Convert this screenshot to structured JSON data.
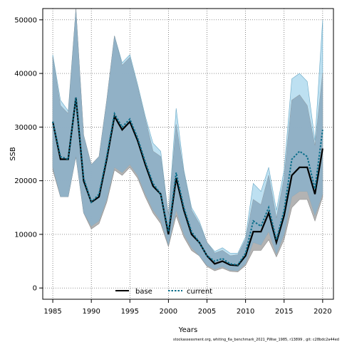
{
  "chart_data": {
    "type": "area",
    "xlabel": "Years",
    "ylabel": "SSB",
    "xlim": [
      1983.7,
      2021.4
    ],
    "ylim": [
      -2100,
      52100
    ],
    "x_ticks": [
      1985,
      1990,
      1995,
      2000,
      2005,
      2010,
      2015,
      2020
    ],
    "y_ticks": [
      0,
      10000,
      20000,
      30000,
      40000,
      50000
    ],
    "grid": "dotted",
    "legend_placement": "bottom-center",
    "footnote": "stockassessment.org, whiting_6a_benchmark_2021_PWse_1985, r13899 , git: c28bdc2a44ed",
    "colors": {
      "base_band": "#a0a0a0",
      "current_band": "#87c6e6",
      "overlap_band": "#8fb1c7",
      "base_line": "#000000",
      "current_line": "#0b6e8a"
    },
    "x": [
      1985,
      1986,
      1987,
      1988,
      1989,
      1990,
      1991,
      1992,
      1993,
      1994,
      1995,
      1996,
      1997,
      1998,
      1999,
      2000,
      2001,
      2002,
      2003,
      2004,
      2005,
      2006,
      2007,
      2008,
      2009,
      2010,
      2011,
      2012,
      2013,
      2014,
      2015,
      2016,
      2017,
      2018,
      2019,
      2020
    ],
    "series": [
      {
        "name": "base",
        "estimate": [
          31000,
          24000,
          24000,
          35500,
          20000,
          16000,
          17000,
          24000,
          32000,
          29500,
          31000,
          27500,
          23000,
          19000,
          17500,
          10000,
          20500,
          14500,
          10000,
          8500,
          6000,
          4500,
          5000,
          4300,
          4200,
          6000,
          10500,
          10500,
          14000,
          8500,
          13500,
          21000,
          22500,
          22500,
          17500,
          26000
        ],
        "lower": [
          22000,
          17000,
          17000,
          24500,
          14000,
          11000,
          12000,
          16000,
          22000,
          21000,
          22500,
          20500,
          17000,
          14000,
          12000,
          7700,
          13500,
          9500,
          7000,
          6000,
          4000,
          3200,
          3700,
          3100,
          3000,
          4200,
          7000,
          7000,
          9000,
          5800,
          9000,
          15000,
          16500,
          16500,
          12500,
          17000
        ],
        "upper": [
          43000,
          34000,
          32500,
          52000,
          28500,
          23000,
          24500,
          35000,
          47000,
          41500,
          43000,
          37500,
          31500,
          25500,
          24500,
          13500,
          30500,
          21500,
          14500,
          12000,
          8500,
          6500,
          7000,
          6000,
          6200,
          9000,
          16500,
          15500,
          21000,
          13000,
          20500,
          35000,
          36000,
          34000,
          26500,
          40000
        ]
      },
      {
        "name": "current",
        "estimate": [
          31000,
          24500,
          24000,
          35500,
          20500,
          16000,
          17500,
          24500,
          32500,
          30000,
          31500,
          28000,
          23500,
          19500,
          17500,
          10500,
          21500,
          15000,
          10500,
          8500,
          6000,
          5000,
          5500,
          4500,
          4300,
          6500,
          12500,
          11500,
          15000,
          9000,
          14500,
          24000,
          25500,
          24500,
          18500,
          29500
        ],
        "lower": [
          22500,
          17000,
          17000,
          24500,
          14000,
          11500,
          12500,
          16500,
          22500,
          21500,
          23000,
          21000,
          17500,
          14500,
          12500,
          8000,
          14500,
          10000,
          7500,
          6000,
          4200,
          3500,
          4000,
          3300,
          3200,
          4500,
          8500,
          8000,
          10500,
          6300,
          10000,
          17000,
          18000,
          18000,
          13500,
          17500
        ],
        "upper": [
          43500,
          35000,
          33000,
          52000,
          28500,
          23000,
          24500,
          35000,
          47000,
          42000,
          43500,
          38000,
          32000,
          27000,
          25500,
          13500,
          33500,
          22000,
          15000,
          12500,
          8500,
          6800,
          7500,
          6500,
          6500,
          9500,
          19500,
          18000,
          22500,
          14500,
          22000,
          39000,
          40000,
          38500,
          27500,
          50000
        ]
      }
    ]
  }
}
